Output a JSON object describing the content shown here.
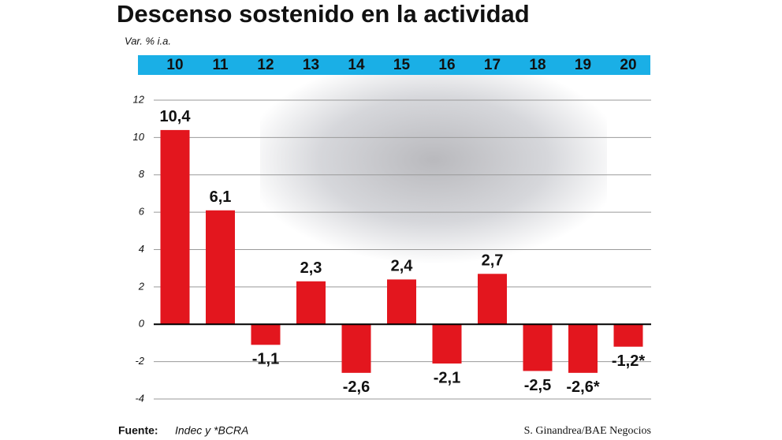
{
  "chart_data": {
    "type": "bar",
    "title": "Descenso sostenido en la actividad",
    "subtitle": "Var. % i.a.",
    "categories": [
      "10",
      "11",
      "12",
      "13",
      "14",
      "15",
      "16",
      "17",
      "18",
      "19",
      "20"
    ],
    "values": [
      10.4,
      6.1,
      -1.1,
      2.3,
      -2.6,
      2.4,
      -2.1,
      2.7,
      -2.5,
      -2.6,
      -1.2
    ],
    "value_labels": [
      "10,4",
      "6,1",
      "-1,1",
      "2,3",
      "-2,6",
      "2,4",
      "-2,1",
      "2,7",
      "-2,5",
      "-2,6*",
      "-1,2*"
    ],
    "color": "#e3161e",
    "ylim": [
      -4,
      12
    ],
    "yticks": [
      -4,
      -2,
      0,
      2,
      4,
      6,
      8,
      10,
      12
    ],
    "grid": true,
    "source_label": "Fuente:",
    "source": "Indec y *BCRA",
    "credit": "S. Ginandrea/BAE Negocios"
  }
}
